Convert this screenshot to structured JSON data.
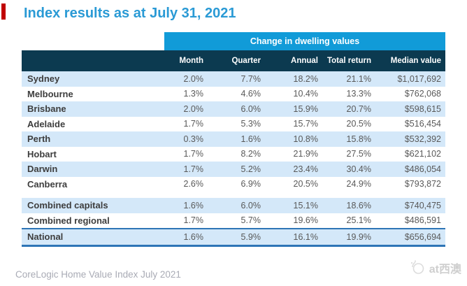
{
  "page": {
    "title": "Index results as at July 31, 2021",
    "source_caption": "CoreLogic Home Value Index July 2021",
    "watermark_text": "at西澳"
  },
  "table": {
    "band_label": "Change in dwelling values",
    "row_header_label": "",
    "columns": [
      "Month",
      "Quarter",
      "Annual",
      "Total return",
      "Median value"
    ],
    "rows": [
      {
        "label": "Sydney",
        "values": [
          "2.0%",
          "7.7%",
          "18.2%",
          "21.1%",
          "$1,017,692"
        ],
        "striped": true
      },
      {
        "label": "Melbourne",
        "values": [
          "1.3%",
          "4.6%",
          "10.4%",
          "13.3%",
          "$762,068"
        ],
        "striped": false
      },
      {
        "label": "Brisbane",
        "values": [
          "2.0%",
          "6.0%",
          "15.9%",
          "20.7%",
          "$598,615"
        ],
        "striped": true
      },
      {
        "label": "Adelaide",
        "values": [
          "1.7%",
          "5.3%",
          "15.7%",
          "20.5%",
          "$516,454"
        ],
        "striped": false
      },
      {
        "label": "Perth",
        "values": [
          "0.3%",
          "1.6%",
          "10.8%",
          "15.8%",
          "$532,392"
        ],
        "striped": true
      },
      {
        "label": "Hobart",
        "values": [
          "1.7%",
          "8.2%",
          "21.9%",
          "27.5%",
          "$621,102"
        ],
        "striped": false
      },
      {
        "label": "Darwin",
        "values": [
          "1.7%",
          "5.2%",
          "23.4%",
          "30.4%",
          "$486,054"
        ],
        "striped": true
      },
      {
        "label": "Canberra",
        "values": [
          "2.6%",
          "6.9%",
          "20.5%",
          "24.9%",
          "$793,872"
        ],
        "striped": false
      },
      {
        "label": "Combined capitals",
        "values": [
          "1.6%",
          "6.0%",
          "15.1%",
          "18.6%",
          "$740,475"
        ],
        "striped": true,
        "group_start": true
      },
      {
        "label": "Combined regional",
        "values": [
          "1.7%",
          "5.7%",
          "19.6%",
          "25.1%",
          "$486,591"
        ],
        "striped": false
      },
      {
        "label": "National",
        "values": [
          "1.6%",
          "5.9%",
          "16.1%",
          "19.9%",
          "$656,694"
        ],
        "striped": true,
        "emphasized": true
      }
    ]
  },
  "colors": {
    "title_blue": "#2a9ad5",
    "band_blue": "#119bd8",
    "header_navy": "#0c3a50",
    "stripe_blue": "#d4e8f9",
    "national_border_blue": "#2e75b6",
    "label_text": "#3d3d3d",
    "value_text": "#595959",
    "caption_grey": "#a9abb5",
    "watermark_grey": "#cfcfcf",
    "red_mark": "#c00000"
  },
  "chart_data": {
    "type": "table",
    "title": "Index results as at July 31, 2021",
    "column_group_header": "Change in dwelling values",
    "columns": [
      "",
      "Month",
      "Quarter",
      "Annual",
      "Total return",
      "Median value"
    ],
    "rows": [
      [
        "Sydney",
        "2.0%",
        "7.7%",
        "18.2%",
        "21.1%",
        "$1,017,692"
      ],
      [
        "Melbourne",
        "1.3%",
        "4.6%",
        "10.4%",
        "13.3%",
        "$762,068"
      ],
      [
        "Brisbane",
        "2.0%",
        "6.0%",
        "15.9%",
        "20.7%",
        "$598,615"
      ],
      [
        "Adelaide",
        "1.7%",
        "5.3%",
        "15.7%",
        "20.5%",
        "$516,454"
      ],
      [
        "Perth",
        "0.3%",
        "1.6%",
        "10.8%",
        "15.8%",
        "$532,392"
      ],
      [
        "Hobart",
        "1.7%",
        "8.2%",
        "21.9%",
        "27.5%",
        "$621,102"
      ],
      [
        "Darwin",
        "1.7%",
        "5.2%",
        "23.4%",
        "30.4%",
        "$486,054"
      ],
      [
        "Canberra",
        "2.6%",
        "6.9%",
        "20.5%",
        "24.9%",
        "$793,872"
      ],
      [
        "Combined capitals",
        "1.6%",
        "6.0%",
        "15.1%",
        "18.6%",
        "$740,475"
      ],
      [
        "Combined regional",
        "1.7%",
        "5.7%",
        "19.6%",
        "25.1%",
        "$486,591"
      ],
      [
        "National",
        "1.6%",
        "5.9%",
        "16.1%",
        "19.9%",
        "$656,694"
      ]
    ],
    "source": "CoreLogic Home Value Index July 2021",
    "layout": {
      "striped_rows": true,
      "summary_gap_before": "Combined capitals",
      "emphasized_row": "National"
    }
  }
}
